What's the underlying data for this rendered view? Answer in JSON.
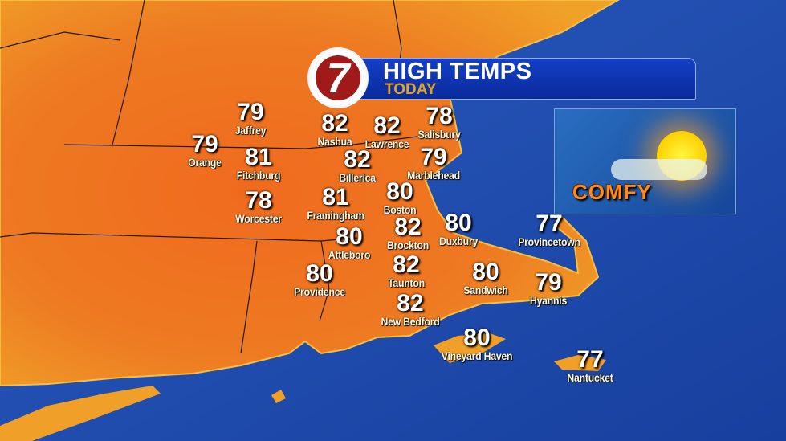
{
  "header": {
    "title": "HIGH TEMPS",
    "subtitle": "TODAY",
    "logo_text": "7"
  },
  "condition": {
    "label": "COMFY",
    "icon": "sun-with-cloud-icon"
  },
  "colors": {
    "land": "#e8621c",
    "ocean": "#1f4fb0",
    "header": "#1440c8",
    "subtitle": "#e8a21a",
    "logo": "#a11a1a"
  },
  "cities": [
    {
      "name": "Jaffrey",
      "temp": "79"
    },
    {
      "name": "Orange",
      "temp": "79"
    },
    {
      "name": "Fitchburg",
      "temp": "81"
    },
    {
      "name": "Worcester",
      "temp": "78"
    },
    {
      "name": "Nashua",
      "temp": "82"
    },
    {
      "name": "Lawrence",
      "temp": "82"
    },
    {
      "name": "Salisbury",
      "temp": "78"
    },
    {
      "name": "Billerica",
      "temp": "82"
    },
    {
      "name": "Marblehead",
      "temp": "79"
    },
    {
      "name": "Framingham",
      "temp": "81"
    },
    {
      "name": "Boston",
      "temp": "80"
    },
    {
      "name": "Brockton",
      "temp": "82"
    },
    {
      "name": "Attleboro",
      "temp": "80"
    },
    {
      "name": "Duxbury",
      "temp": "80"
    },
    {
      "name": "Provincetown",
      "temp": "77"
    },
    {
      "name": "Providence",
      "temp": "80"
    },
    {
      "name": "Taunton",
      "temp": "82"
    },
    {
      "name": "Sandwich",
      "temp": "80"
    },
    {
      "name": "Hyannis",
      "temp": "79"
    },
    {
      "name": "New Bedford",
      "temp": "82"
    },
    {
      "name": "Vineyard Haven",
      "temp": "80"
    },
    {
      "name": "Nantucket",
      "temp": "77"
    }
  ]
}
